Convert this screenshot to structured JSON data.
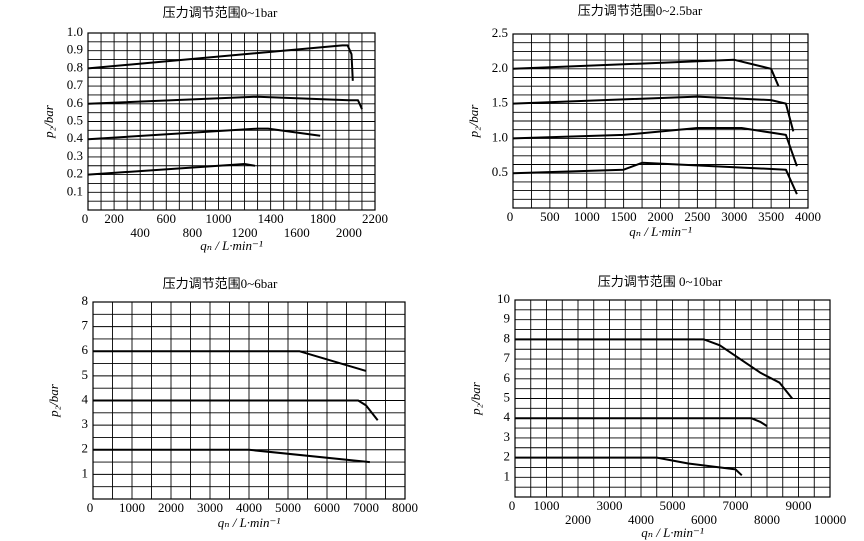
{
  "chart_data": [
    {
      "type": "line",
      "title": "压力调节范围0~1bar",
      "x_label": "qₙ / L·min⁻¹",
      "y_label": "p₂/bar",
      "xlim": [
        0,
        2200
      ],
      "ylim": [
        0,
        1
      ],
      "grid": true,
      "staggered_xticks": true,
      "xticks": [
        0,
        200,
        400,
        600,
        800,
        1000,
        1200,
        1400,
        1600,
        1800,
        2000,
        2200
      ],
      "yticks": [
        0.1,
        0.2,
        0.3,
        0.4,
        0.5,
        0.6,
        0.7,
        0.8,
        0.9,
        {
          "value": 1,
          "label": "1.0"
        }
      ],
      "series": [
        {
          "color": "#000000",
          "x": [
            0,
            1950,
            1990,
            2020,
            2030
          ],
          "values": [
            0.8,
            0.93,
            0.93,
            0.88,
            0.73
          ]
        },
        {
          "color": "#000000",
          "x": [
            0,
            1300,
            2000,
            2070,
            2100
          ],
          "values": [
            0.6,
            0.64,
            0.62,
            0.62,
            0.57
          ]
        },
        {
          "color": "#000000",
          "x": [
            0,
            1300,
            1380,
            1780
          ],
          "values": [
            0.4,
            0.46,
            0.46,
            0.42
          ]
        },
        {
          "color": "#000000",
          "x": [
            0,
            1200,
            1280
          ],
          "values": [
            0.2,
            0.26,
            0.25
          ]
        }
      ]
    },
    {
      "type": "line",
      "title": "压力调节范围0~2.5bar",
      "x_label": "qₙ / L·min⁻¹",
      "y_label": "p₂/bar",
      "xlim": [
        0,
        4000
      ],
      "ylim": [
        0,
        2.5
      ],
      "grid": true,
      "staggered_xticks": false,
      "xticks": [
        0,
        500,
        1000,
        1500,
        2000,
        2500,
        3000,
        3500,
        4000
      ],
      "yticks": [
        0.5,
        {
          "value": 1,
          "label": "1.0"
        },
        1.5,
        {
          "value": 2,
          "label": "2.0"
        },
        2.5
      ],
      "series": [
        {
          "color": "#000000",
          "x": [
            0,
            3000,
            3500,
            3600
          ],
          "values": [
            2.0,
            2.13,
            2.0,
            1.75
          ]
        },
        {
          "color": "#000000",
          "x": [
            0,
            2500,
            3500,
            3700,
            3800
          ],
          "values": [
            1.5,
            1.6,
            1.55,
            1.5,
            1.1
          ]
        },
        {
          "color": "#000000",
          "x": [
            0,
            1500,
            2500,
            3100,
            3700,
            3850
          ],
          "values": [
            1.0,
            1.05,
            1.15,
            1.15,
            1.05,
            0.6
          ]
        },
        {
          "color": "#000000",
          "x": [
            0,
            1500,
            1750,
            3700,
            3850
          ],
          "values": [
            0.5,
            0.55,
            0.65,
            0.55,
            0.2
          ]
        }
      ]
    },
    {
      "type": "line",
      "title": "压力调节范围0~6bar",
      "x_label": "qₙ / L·min⁻¹",
      "y_label": "p₂/bar",
      "xlim": [
        0,
        8000
      ],
      "ylim": [
        0,
        8
      ],
      "grid": true,
      "staggered_xticks": false,
      "xticks": [
        0,
        1000,
        2000,
        3000,
        4000,
        5000,
        6000,
        7000,
        8000
      ],
      "yticks": [
        1,
        2,
        3,
        4,
        5,
        6,
        7,
        8
      ],
      "series": [
        {
          "color": "#000000",
          "x": [
            0,
            5300,
            7000
          ],
          "values": [
            6,
            6,
            5.2
          ]
        },
        {
          "color": "#000000",
          "x": [
            0,
            6800,
            7000,
            7300
          ],
          "values": [
            4,
            4,
            3.8,
            3.2
          ]
        },
        {
          "color": "#000000",
          "x": [
            0,
            4000,
            7100
          ],
          "values": [
            2,
            2,
            1.5
          ]
        }
      ]
    },
    {
      "type": "line",
      "title": "压力调节范围 0~10bar",
      "x_label": "qₙ / L·min⁻¹",
      "y_label": "p₂/bar",
      "xlim": [
        0,
        10000
      ],
      "ylim": [
        0,
        10
      ],
      "grid": true,
      "staggered_xticks": true,
      "xticks": [
        0,
        1000,
        2000,
        3000,
        4000,
        5000,
        6000,
        7000,
        8000,
        9000,
        10000
      ],
      "yticks": [
        1,
        2,
        3,
        4,
        5,
        6,
        7,
        8,
        9,
        10
      ],
      "series": [
        {
          "color": "#000000",
          "x": [
            0,
            6000,
            6500,
            7800,
            8400,
            8800
          ],
          "values": [
            8,
            8,
            7.7,
            6.3,
            5.8,
            5.0
          ]
        },
        {
          "color": "#000000",
          "x": [
            0,
            7500,
            7800,
            8000
          ],
          "values": [
            4,
            4,
            3.8,
            3.6
          ]
        },
        {
          "color": "#000000",
          "x": [
            0,
            4500,
            5500,
            7000,
            7200
          ],
          "values": [
            2,
            2,
            1.7,
            1.4,
            1.1
          ]
        }
      ]
    }
  ]
}
